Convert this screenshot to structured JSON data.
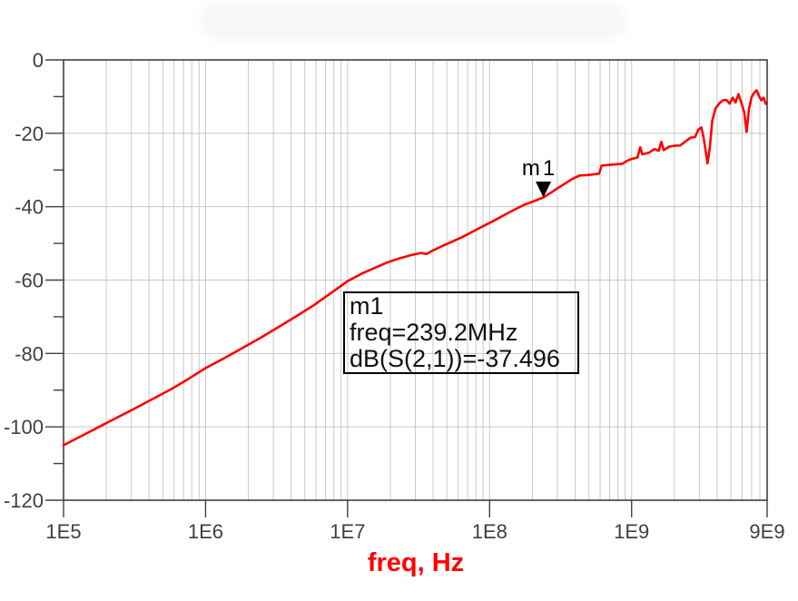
{
  "colors": {
    "trace": "#ff0000",
    "grid": "#c9c9c9",
    "frame": "#404040",
    "tick_text": "#404040",
    "marker_fill": "#000000",
    "x_axis_title": "#ff0000"
  },
  "chart_data": {
    "type": "line",
    "title": "",
    "xlabel": "freq, Hz",
    "ylabel": "",
    "x_scale": "log",
    "xlim": [
      100000.0,
      9000000000.0
    ],
    "ylim": [
      -120,
      0
    ],
    "grid": true,
    "x_ticks": [
      {
        "value": 100000.0,
        "label": "1E5"
      },
      {
        "value": 1000000.0,
        "label": "1E6"
      },
      {
        "value": 10000000.0,
        "label": "1E7"
      },
      {
        "value": 100000000.0,
        "label": "1E8"
      },
      {
        "value": 1000000000.0,
        "label": "1E9"
      },
      {
        "value": 9000000000.0,
        "label": "9E9"
      }
    ],
    "y_ticks": [
      {
        "value": 0,
        "label": "0"
      },
      {
        "value": -20,
        "label": "-20"
      },
      {
        "value": -40,
        "label": "-40"
      },
      {
        "value": -60,
        "label": "-60"
      },
      {
        "value": -80,
        "label": "-80"
      },
      {
        "value": -100,
        "label": "-100"
      },
      {
        "value": -120,
        "label": "-120"
      }
    ],
    "y_minor_ticks": [
      -10,
      -30,
      -50,
      -70,
      -90,
      -110
    ],
    "series": [
      {
        "name": "dB(S(2,1))",
        "points": [
          [
            100000.0,
            -105.0
          ],
          [
            135000.0,
            -102.4
          ],
          [
            180000.0,
            -99.9
          ],
          [
            240000.0,
            -97.4
          ],
          [
            320000.0,
            -94.9
          ],
          [
            430000.0,
            -92.3
          ],
          [
            570000.0,
            -89.8
          ],
          [
            760000.0,
            -86.9
          ],
          [
            1000000.0,
            -84.0
          ],
          [
            1350000.0,
            -81.3
          ],
          [
            1800000.0,
            -78.6
          ],
          [
            2400000.0,
            -75.9
          ],
          [
            3200000.0,
            -73.0
          ],
          [
            4300000.0,
            -70.0
          ],
          [
            5700000.0,
            -67.0
          ],
          [
            7600000.0,
            -63.6
          ],
          [
            10000000.0,
            -60.3
          ],
          [
            12500000.0,
            -58.3
          ],
          [
            15500000.0,
            -56.7
          ],
          [
            19000000.0,
            -55.2
          ],
          [
            23000000.0,
            -54.1
          ],
          [
            28000000.0,
            -53.2
          ],
          [
            33000000.0,
            -52.6
          ],
          [
            36000000.0,
            -52.9
          ],
          [
            40000000.0,
            -51.9
          ],
          [
            46000000.0,
            -50.8
          ],
          [
            54000000.0,
            -49.6
          ],
          [
            64000000.0,
            -48.3
          ],
          [
            76000000.0,
            -46.8
          ],
          [
            90000000.0,
            -45.3
          ],
          [
            105000000.0,
            -44.0
          ],
          [
            125000000.0,
            -42.4
          ],
          [
            150000000.0,
            -40.8
          ],
          [
            175000000.0,
            -39.5
          ],
          [
            205000000.0,
            -38.5
          ],
          [
            239200000.0,
            -37.496
          ],
          [
            270000000.0,
            -36.2
          ],
          [
            300000000.0,
            -35.0
          ],
          [
            340000000.0,
            -33.7
          ],
          [
            380000000.0,
            -32.5
          ],
          [
            430000000.0,
            -31.5
          ],
          [
            480000000.0,
            -31.4
          ],
          [
            540000000.0,
            -31.2
          ],
          [
            590000000.0,
            -31.0
          ],
          [
            615000000.0,
            -28.8
          ],
          [
            700000000.0,
            -28.6
          ],
          [
            860000000.0,
            -28.3
          ],
          [
            940000000.0,
            -27.4
          ],
          [
            1000000000.0,
            -27.0
          ],
          [
            1100000000.0,
            -26.6
          ],
          [
            1150000000.0,
            -23.8
          ],
          [
            1190000000.0,
            -25.7
          ],
          [
            1320000000.0,
            -25.3
          ],
          [
            1450000000.0,
            -24.3
          ],
          [
            1550000000.0,
            -24.8
          ],
          [
            1620000000.0,
            -22.3
          ],
          [
            1680000000.0,
            -24.6
          ],
          [
            1850000000.0,
            -23.6
          ],
          [
            2000000000.0,
            -23.4
          ],
          [
            2200000000.0,
            -23.3
          ],
          [
            2400000000.0,
            -22.2
          ],
          [
            2600000000.0,
            -21.2
          ],
          [
            2800000000.0,
            -21.0
          ],
          [
            2950000000.0,
            -19.0
          ],
          [
            3100000000.0,
            -18.4
          ],
          [
            3220000000.0,
            -21.5
          ],
          [
            3300000000.0,
            -23.9
          ],
          [
            3420000000.0,
            -28.2
          ],
          [
            3550000000.0,
            -24.0
          ],
          [
            3700000000.0,
            -16.5
          ],
          [
            3900000000.0,
            -13.2
          ],
          [
            4150000000.0,
            -11.8
          ],
          [
            4400000000.0,
            -11.0
          ],
          [
            4650000000.0,
            -10.9
          ],
          [
            4900000000.0,
            -11.9
          ],
          [
            5150000000.0,
            -10.3
          ],
          [
            5400000000.0,
            -11.6
          ],
          [
            5650000000.0,
            -9.3
          ],
          [
            5950000000.0,
            -11.9
          ],
          [
            6200000000.0,
            -14.2
          ],
          [
            6450000000.0,
            -19.6
          ],
          [
            6700000000.0,
            -13.3
          ],
          [
            7000000000.0,
            -10.1
          ],
          [
            7350000000.0,
            -8.8
          ],
          [
            7600000000.0,
            -8.3
          ],
          [
            7900000000.0,
            -9.9
          ],
          [
            8200000000.0,
            -11.0
          ],
          [
            8500000000.0,
            -10.3
          ],
          [
            8800000000.0,
            -12.0
          ]
        ]
      }
    ],
    "marker": {
      "name": "m1",
      "freq_hz": 239200000.0,
      "db": -37.496,
      "label_lines": [
        "m1",
        "freq=239.2MHz",
        "dB(S(2,1))=-37.496"
      ]
    }
  }
}
